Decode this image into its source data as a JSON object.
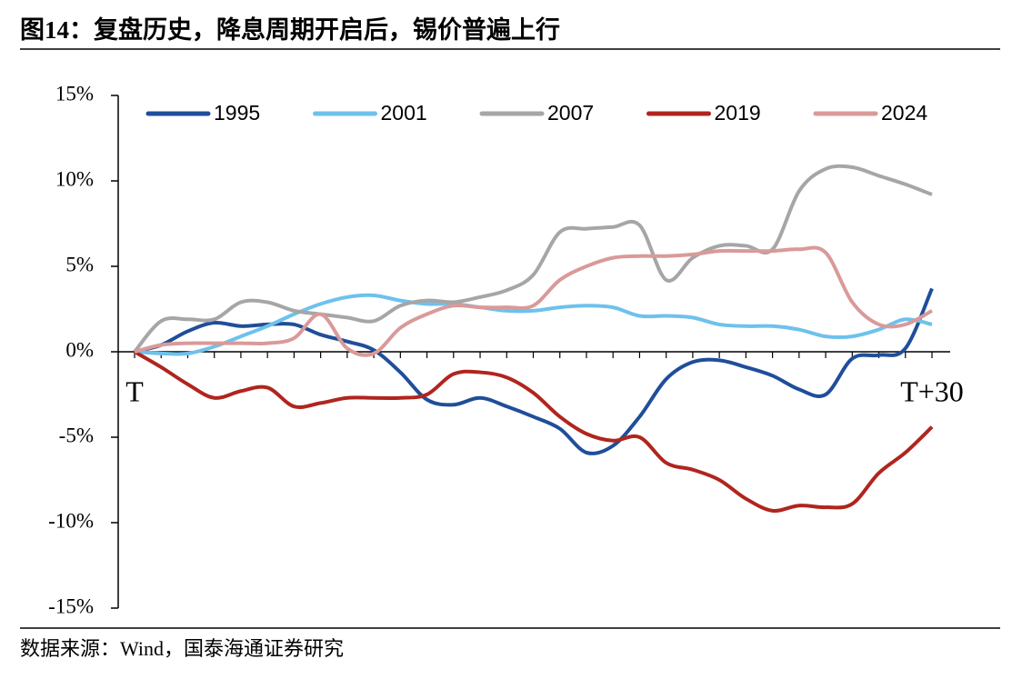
{
  "chart_data": {
    "type": "line",
    "title": "图14：复盘历史，降息周期开启后，锡价普遍上行",
    "source": "数据来源：Wind，国泰海通证券研究",
    "categories": [
      "T",
      null,
      null,
      null,
      null,
      null,
      null,
      null,
      null,
      null,
      null,
      null,
      null,
      null,
      null,
      null,
      null,
      null,
      null,
      null,
      null,
      null,
      null,
      null,
      null,
      null,
      null,
      null,
      null,
      null,
      "T+30"
    ],
    "ylim": [
      -15,
      15
    ],
    "yticks": [
      {
        "value": 15,
        "label": "15%"
      },
      {
        "value": 10,
        "label": "10%"
      },
      {
        "value": 5,
        "label": "5%"
      },
      {
        "value": 0,
        "label": "0%"
      },
      {
        "value": -5,
        "label": "-5%"
      },
      {
        "value": -10,
        "label": "-10%"
      },
      {
        "value": -15,
        "label": "-15%"
      }
    ],
    "legend": "top",
    "series": [
      {
        "name": "1995",
        "color": "#1f4e9a",
        "values": [
          0,
          0.4,
          1.2,
          1.7,
          1.5,
          1.6,
          1.6,
          1.0,
          0.6,
          0.1,
          -1.2,
          -2.8,
          -3.1,
          -2.7,
          -3.2,
          -3.8,
          -4.5,
          -5.9,
          -5.5,
          -3.8,
          -1.6,
          -0.6,
          -0.5,
          -0.9,
          -1.4,
          -2.2,
          -2.5,
          -0.4,
          -0.2,
          0.2,
          3.7
        ]
      },
      {
        "name": "2001",
        "color": "#6ec1ec",
        "values": [
          0,
          -0.1,
          -0.1,
          0.3,
          0.9,
          1.5,
          2.2,
          2.8,
          3.2,
          3.3,
          3.0,
          2.8,
          2.8,
          2.6,
          2.4,
          2.4,
          2.6,
          2.7,
          2.6,
          2.1,
          2.1,
          2.0,
          1.6,
          1.5,
          1.5,
          1.3,
          0.9,
          0.9,
          1.3,
          1.9,
          1.6
        ]
      },
      {
        "name": "2007",
        "color": "#a6a6a6",
        "values": [
          0,
          1.8,
          1.9,
          1.9,
          2.9,
          2.9,
          2.4,
          2.2,
          2.0,
          1.8,
          2.7,
          3.0,
          2.9,
          3.2,
          3.6,
          4.5,
          7.0,
          7.2,
          7.3,
          7.4,
          4.2,
          5.5,
          6.2,
          6.2,
          6.0,
          9.4,
          10.7,
          10.8,
          10.3,
          9.8,
          9.2
        ]
      },
      {
        "name": "2019",
        "color": "#b0251e",
        "values": [
          0,
          -0.9,
          -1.9,
          -2.7,
          -2.3,
          -2.1,
          -3.2,
          -3.0,
          -2.7,
          -2.7,
          -2.7,
          -2.5,
          -1.3,
          -1.2,
          -1.5,
          -2.4,
          -3.8,
          -4.8,
          -5.2,
          -5.0,
          -6.5,
          -6.9,
          -7.5,
          -8.6,
          -9.3,
          -9.0,
          -9.1,
          -8.9,
          -7.1,
          -5.9,
          -4.4
        ]
      },
      {
        "name": "2024",
        "color": "#d99a99",
        "values": [
          0,
          0.4,
          0.5,
          0.5,
          0.5,
          0.5,
          0.8,
          2.2,
          0.2,
          -0.1,
          1.4,
          2.2,
          2.7,
          2.6,
          2.6,
          2.7,
          4.2,
          5.0,
          5.5,
          5.6,
          5.6,
          5.7,
          5.9,
          5.9,
          5.9,
          6.0,
          5.8,
          2.9,
          1.6,
          1.6,
          2.4
        ]
      }
    ]
  }
}
